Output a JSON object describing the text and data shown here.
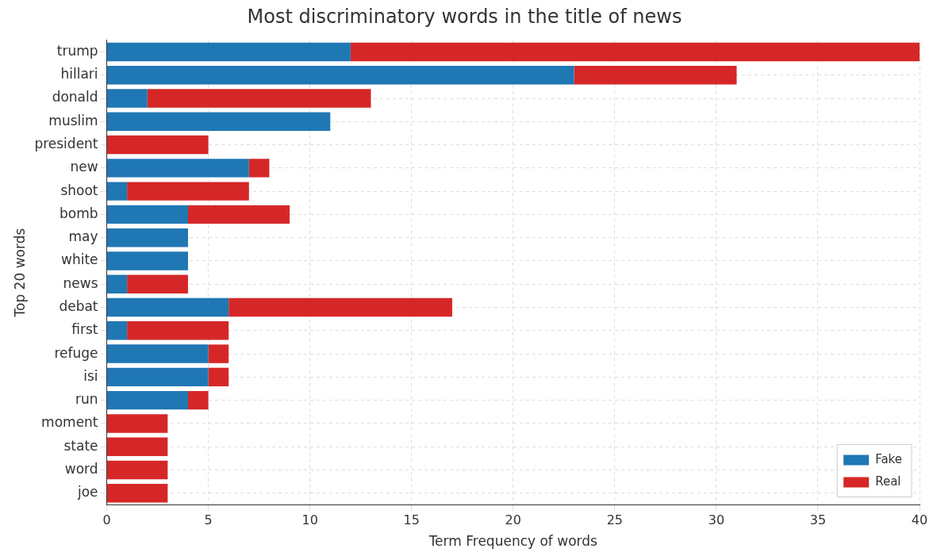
{
  "chart_data": {
    "type": "bar",
    "orientation": "horizontal",
    "stacked": true,
    "title": "Most discriminatory words in the title of news",
    "xlabel": "Term Frequency of words",
    "ylabel": "Top 20 words",
    "categories": [
      "trump",
      "hillari",
      "donald",
      "muslim",
      "president",
      "new",
      "shoot",
      "bomb",
      "may",
      "white",
      "news",
      "debat",
      "first",
      "refuge",
      "isi",
      "run",
      "moment",
      "state",
      "word",
      "joe"
    ],
    "series": [
      {
        "name": "Fake",
        "color": "#1f77b4",
        "values": [
          12,
          23,
          2,
          11,
          0,
          7,
          1,
          4,
          4,
          4,
          1,
          6,
          1,
          5,
          5,
          4,
          0,
          0,
          0,
          0
        ]
      },
      {
        "name": "Real",
        "color": "#d62728",
        "values": [
          28,
          8,
          11,
          0,
          5,
          1,
          6,
          5,
          0,
          0,
          3,
          11,
          5,
          1,
          1,
          1,
          3,
          3,
          3,
          3
        ]
      }
    ],
    "xlim": [
      0,
      40
    ],
    "xticks": [
      0,
      5,
      10,
      15,
      20,
      25,
      30,
      35,
      40
    ],
    "grid": true,
    "legend": "bottom right"
  }
}
